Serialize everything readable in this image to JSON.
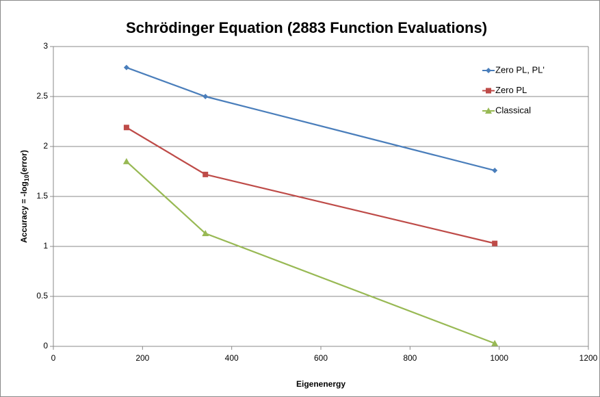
{
  "chart_data": {
    "type": "line",
    "title": "Schrödinger Equation (2883 Function Evaluations)",
    "x_label": "Eigenenergy",
    "y_label": [
      "Accuracy = -log",
      "10",
      "(error)"
    ],
    "x": [
      164,
      341,
      990
    ],
    "series": [
      {
        "name": "Zero PL, PL'",
        "color": "#4a7ebb",
        "marker": "diamond",
        "values": [
          2.79,
          2.5,
          1.76
        ]
      },
      {
        "name": "Zero PL",
        "color": "#be4b48",
        "marker": "square",
        "values": [
          2.19,
          1.72,
          1.03
        ]
      },
      {
        "name": "Classical",
        "color": "#98b954",
        "marker": "triangle",
        "values": [
          1.85,
          1.13,
          0.03
        ]
      }
    ],
    "xlim": [
      0,
      1200
    ],
    "xticks": [
      0,
      200,
      400,
      600,
      800,
      1000,
      1200
    ],
    "ylim": [
      0,
      3
    ],
    "yticks": [
      0,
      0.5,
      1,
      1.5,
      2,
      2.5,
      3
    ],
    "grid": true,
    "legend": "top-right"
  }
}
